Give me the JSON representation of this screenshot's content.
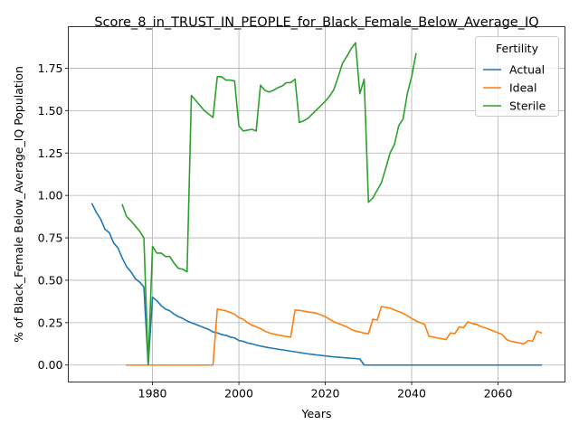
{
  "chart_data": {
    "type": "line",
    "title": "Score_8_in_TRUST_IN_PEOPLE_for_Black_Female_Below_Average_IQ",
    "xlabel": "Years",
    "ylabel": "% of Black_Female Below_Average_IQ Population",
    "xlim": [
      1960.5,
      2075.5
    ],
    "ylim": [
      -0.1,
      1.995
    ],
    "xticks": [
      1980,
      2000,
      2020,
      2040,
      2060
    ],
    "yticks": [
      0.0,
      0.25,
      0.5,
      0.75,
      1.0,
      1.25,
      1.5,
      1.75
    ],
    "ytick_labels": [
      "0.00",
      "0.25",
      "0.50",
      "0.75",
      "1.00",
      "1.25",
      "1.50",
      "1.75"
    ],
    "grid": true,
    "legend": {
      "title": "Fertility",
      "placement": "upper right"
    },
    "series": [
      {
        "name": "Actual",
        "color": "#1f77b4",
        "points": [
          [
            1966,
            0.95
          ],
          [
            1967,
            0.9
          ],
          [
            1968,
            0.86
          ],
          [
            1969,
            0.8
          ],
          [
            1970,
            0.78
          ],
          [
            1971,
            0.72
          ],
          [
            1972,
            0.69
          ],
          [
            1973,
            0.63
          ],
          [
            1974,
            0.58
          ],
          [
            1975,
            0.55
          ],
          [
            1976,
            0.51
          ],
          [
            1977,
            0.49
          ],
          [
            1978,
            0.46
          ],
          [
            1979,
            0.0
          ],
          [
            1980,
            0.4
          ],
          [
            1981,
            0.38
          ],
          [
            1982,
            0.35
          ],
          [
            1983,
            0.33
          ],
          [
            1984,
            0.32
          ],
          [
            1985,
            0.3
          ],
          [
            1986,
            0.285
          ],
          [
            1987,
            0.275
          ],
          [
            1988,
            0.26
          ],
          [
            1989,
            0.25
          ],
          [
            1990,
            0.24
          ],
          [
            1991,
            0.23
          ],
          [
            1992,
            0.22
          ],
          [
            1993,
            0.21
          ],
          [
            1994,
            0.195
          ],
          [
            1995,
            0.19
          ],
          [
            1996,
            0.18
          ],
          [
            1997,
            0.175
          ],
          [
            1998,
            0.165
          ],
          [
            1999,
            0.16
          ],
          [
            2000,
            0.145
          ],
          [
            2001,
            0.14
          ],
          [
            2002,
            0.13
          ],
          [
            2003,
            0.125
          ],
          [
            2004,
            0.118
          ],
          [
            2005,
            0.112
          ],
          [
            2006,
            0.107
          ],
          [
            2007,
            0.102
          ],
          [
            2008,
            0.098
          ],
          [
            2009,
            0.094
          ],
          [
            2010,
            0.09
          ],
          [
            2011,
            0.086
          ],
          [
            2012,
            0.082
          ],
          [
            2013,
            0.078
          ],
          [
            2014,
            0.074
          ],
          [
            2015,
            0.07
          ],
          [
            2016,
            0.066
          ],
          [
            2017,
            0.063
          ],
          [
            2018,
            0.06
          ],
          [
            2019,
            0.057
          ],
          [
            2020,
            0.054
          ],
          [
            2021,
            0.051
          ],
          [
            2022,
            0.048
          ],
          [
            2023,
            0.046
          ],
          [
            2024,
            0.044
          ],
          [
            2025,
            0.042
          ],
          [
            2026,
            0.04
          ],
          [
            2027,
            0.038
          ],
          [
            2028,
            0.036
          ],
          [
            2029,
            0.0
          ],
          [
            2030,
            0.0
          ],
          [
            2040,
            0.0
          ],
          [
            2050,
            0.0
          ],
          [
            2060,
            0.0
          ],
          [
            2070,
            0.0
          ]
        ]
      },
      {
        "name": "Ideal",
        "color": "#ff7f0e",
        "points": [
          [
            1974,
            0.0
          ],
          [
            1994,
            0.0
          ],
          [
            1995,
            0.33
          ],
          [
            1996,
            0.325
          ],
          [
            1997,
            0.32
          ],
          [
            1998,
            0.31
          ],
          [
            1999,
            0.3
          ],
          [
            2000,
            0.28
          ],
          [
            2001,
            0.27
          ],
          [
            2002,
            0.25
          ],
          [
            2003,
            0.235
          ],
          [
            2004,
            0.225
          ],
          [
            2005,
            0.215
          ],
          [
            2006,
            0.2
          ],
          [
            2007,
            0.19
          ],
          [
            2008,
            0.183
          ],
          [
            2009,
            0.178
          ],
          [
            2010,
            0.173
          ],
          [
            2011,
            0.168
          ],
          [
            2012,
            0.165
          ],
          [
            2013,
            0.325
          ],
          [
            2014,
            0.322
          ],
          [
            2015,
            0.318
          ],
          [
            2016,
            0.313
          ],
          [
            2017,
            0.31
          ],
          [
            2018,
            0.305
          ],
          [
            2019,
            0.295
          ],
          [
            2020,
            0.285
          ],
          [
            2021,
            0.27
          ],
          [
            2022,
            0.255
          ],
          [
            2023,
            0.245
          ],
          [
            2024,
            0.235
          ],
          [
            2025,
            0.225
          ],
          [
            2026,
            0.21
          ],
          [
            2027,
            0.2
          ],
          [
            2028,
            0.195
          ],
          [
            2029,
            0.188
          ],
          [
            2030,
            0.185
          ],
          [
            2031,
            0.27
          ],
          [
            2032,
            0.265
          ],
          [
            2033,
            0.345
          ],
          [
            2034,
            0.34
          ],
          [
            2035,
            0.335
          ],
          [
            2036,
            0.325
          ],
          [
            2037,
            0.315
          ],
          [
            2038,
            0.305
          ],
          [
            2039,
            0.29
          ],
          [
            2040,
            0.275
          ],
          [
            2041,
            0.26
          ],
          [
            2042,
            0.25
          ],
          [
            2043,
            0.24
          ],
          [
            2044,
            0.17
          ],
          [
            2045,
            0.165
          ],
          [
            2046,
            0.16
          ],
          [
            2047,
            0.155
          ],
          [
            2048,
            0.15
          ],
          [
            2049,
            0.19
          ],
          [
            2050,
            0.185
          ],
          [
            2051,
            0.225
          ],
          [
            2052,
            0.22
          ],
          [
            2053,
            0.255
          ],
          [
            2054,
            0.245
          ],
          [
            2055,
            0.24
          ],
          [
            2056,
            0.228
          ],
          [
            2057,
            0.22
          ],
          [
            2058,
            0.21
          ],
          [
            2059,
            0.2
          ],
          [
            2060,
            0.19
          ],
          [
            2061,
            0.18
          ],
          [
            2062,
            0.15
          ],
          [
            2063,
            0.14
          ],
          [
            2064,
            0.135
          ],
          [
            2065,
            0.13
          ],
          [
            2066,
            0.125
          ],
          [
            2067,
            0.145
          ],
          [
            2068,
            0.14
          ],
          [
            2069,
            0.2
          ],
          [
            2070,
            0.19
          ]
        ]
      },
      {
        "name": "Sterile",
        "color": "#2ca02c",
        "points": [
          [
            1973,
            0.945
          ],
          [
            1974,
            0.875
          ],
          [
            1975,
            0.85
          ],
          [
            1976,
            0.82
          ],
          [
            1977,
            0.79
          ],
          [
            1978,
            0.75
          ],
          [
            1979,
            0.0
          ],
          [
            1980,
            0.7
          ],
          [
            1981,
            0.66
          ],
          [
            1982,
            0.66
          ],
          [
            1983,
            0.64
          ],
          [
            1984,
            0.64
          ],
          [
            1985,
            0.6
          ],
          [
            1986,
            0.57
          ],
          [
            1987,
            0.565
          ],
          [
            1988,
            0.55
          ],
          [
            1989,
            1.59
          ],
          [
            1990,
            1.56
          ],
          [
            1991,
            1.53
          ],
          [
            1992,
            1.5
          ],
          [
            1993,
            1.48
          ],
          [
            1994,
            1.46
          ],
          [
            1995,
            1.7
          ],
          [
            1996,
            1.7
          ],
          [
            1997,
            1.68
          ],
          [
            1998,
            1.68
          ],
          [
            1999,
            1.675
          ],
          [
            2000,
            1.41
          ],
          [
            2001,
            1.38
          ],
          [
            2002,
            1.385
          ],
          [
            2003,
            1.39
          ],
          [
            2004,
            1.38
          ],
          [
            2005,
            1.65
          ],
          [
            2006,
            1.62
          ],
          [
            2007,
            1.61
          ],
          [
            2008,
            1.62
          ],
          [
            2009,
            1.635
          ],
          [
            2010,
            1.645
          ],
          [
            2011,
            1.665
          ],
          [
            2012,
            1.665
          ],
          [
            2013,
            1.685
          ],
          [
            2014,
            1.43
          ],
          [
            2015,
            1.44
          ],
          [
            2016,
            1.455
          ],
          [
            2017,
            1.48
          ],
          [
            2018,
            1.505
          ],
          [
            2019,
            1.53
          ],
          [
            2020,
            1.555
          ],
          [
            2021,
            1.585
          ],
          [
            2022,
            1.625
          ],
          [
            2023,
            1.7
          ],
          [
            2024,
            1.78
          ],
          [
            2025,
            1.82
          ],
          [
            2026,
            1.865
          ],
          [
            2027,
            1.9
          ],
          [
            2028,
            1.6
          ],
          [
            2029,
            1.685
          ],
          [
            2030,
            0.96
          ],
          [
            2031,
            0.985
          ],
          [
            2032,
            1.03
          ],
          [
            2033,
            1.075
          ],
          [
            2034,
            1.16
          ],
          [
            2035,
            1.25
          ],
          [
            2036,
            1.3
          ],
          [
            2037,
            1.41
          ],
          [
            2038,
            1.45
          ],
          [
            2039,
            1.6
          ],
          [
            2040,
            1.7
          ],
          [
            2041,
            1.835
          ]
        ]
      }
    ]
  }
}
